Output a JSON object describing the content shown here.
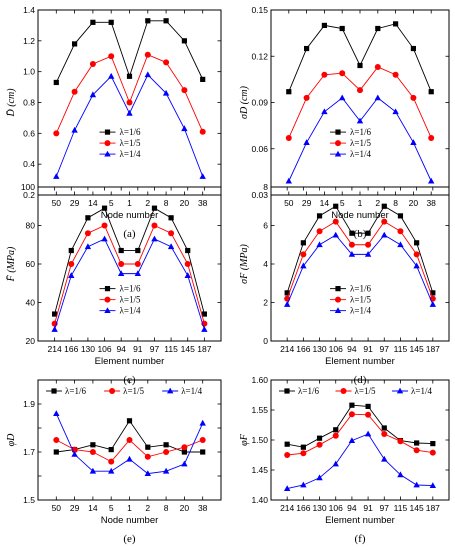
{
  "legend_labels": [
    "λ=1/6",
    "λ=1/5",
    "λ=1/4"
  ],
  "colors": [
    "#000000",
    "#ff0000",
    "#0000ff"
  ],
  "chart_data": [
    {
      "type": "line",
      "caption": "(a)",
      "ylabel": "D̄ (cm)",
      "xlabel": "Node number",
      "categories": [
        "50",
        "29",
        "14",
        "5",
        "1",
        "2",
        "8",
        "20",
        "38"
      ],
      "ylim": [
        0.2,
        1.4
      ],
      "yticks": [
        "0.2",
        "0.4",
        "0.6",
        "0.8",
        "1.0",
        "1.2",
        "1.4"
      ],
      "legend_position": "bottom-center",
      "series": [
        {
          "name": "λ=1/6",
          "values": [
            0.93,
            1.18,
            1.32,
            1.32,
            0.97,
            1.33,
            1.33,
            1.2,
            0.95
          ]
        },
        {
          "name": "λ=1/5",
          "values": [
            0.6,
            0.87,
            1.05,
            1.1,
            0.8,
            1.11,
            1.06,
            0.88,
            0.61
          ]
        },
        {
          "name": "λ=1/4",
          "values": [
            0.32,
            0.62,
            0.85,
            0.97,
            0.73,
            0.98,
            0.86,
            0.63,
            0.32
          ]
        }
      ]
    },
    {
      "type": "line",
      "caption": "(b)",
      "ylabel": "σD (cm)",
      "xlabel": "Node number",
      "categories": [
        "50",
        "29",
        "14",
        "5",
        "1",
        "2",
        "8",
        "20",
        "38"
      ],
      "ylim": [
        0.03,
        0.15
      ],
      "yticks": [
        "0.03",
        "0.06",
        "0.09",
        "0.12",
        "0.15"
      ],
      "legend_position": "bottom-center",
      "series": [
        {
          "name": "λ=1/6",
          "values": [
            0.097,
            0.125,
            0.14,
            0.138,
            0.114,
            0.138,
            0.141,
            0.125,
            0.097
          ]
        },
        {
          "name": "λ=1/5",
          "values": [
            0.067,
            0.093,
            0.108,
            0.109,
            0.098,
            0.113,
            0.108,
            0.093,
            0.067
          ]
        },
        {
          "name": "λ=1/4",
          "values": [
            0.039,
            0.064,
            0.084,
            0.093,
            0.078,
            0.093,
            0.084,
            0.064,
            0.039
          ]
        }
      ]
    },
    {
      "type": "line",
      "caption": "(c)",
      "ylabel": "F̄ (MPa)",
      "xlabel": "Element number",
      "categories": [
        "214",
        "166",
        "130",
        "106",
        "94",
        "91",
        "97",
        "115",
        "145",
        "187"
      ],
      "ylim": [
        20,
        100
      ],
      "yticks": [
        "20",
        "40",
        "60",
        "80",
        "100"
      ],
      "legend_position": "bottom-center",
      "series": [
        {
          "name": "λ=1/6",
          "values": [
            34,
            67,
            84,
            89,
            67,
            67,
            89,
            84,
            67,
            34
          ]
        },
        {
          "name": "λ=1/5",
          "values": [
            29,
            60,
            76,
            80,
            60,
            60,
            80,
            76,
            60,
            29
          ]
        },
        {
          "name": "λ=1/4",
          "values": [
            26,
            54,
            69,
            73,
            55,
            55,
            73,
            69,
            54,
            26
          ]
        }
      ]
    },
    {
      "type": "line",
      "caption": "(d)",
      "ylabel": "σF (MPa)",
      "xlabel": "Element number",
      "categories": [
        "214",
        "166",
        "130",
        "106",
        "94",
        "91",
        "97",
        "115",
        "145",
        "187"
      ],
      "ylim": [
        0,
        8
      ],
      "yticks": [
        "0",
        "2",
        "4",
        "6",
        "8"
      ],
      "legend_position": "bottom-center",
      "series": [
        {
          "name": "λ=1/6",
          "values": [
            2.5,
            5.1,
            6.5,
            7.0,
            5.6,
            5.6,
            7.0,
            6.5,
            5.1,
            2.5
          ]
        },
        {
          "name": "λ=1/5",
          "values": [
            2.2,
            4.5,
            5.7,
            6.2,
            5.0,
            5.0,
            6.2,
            5.7,
            4.5,
            2.2
          ]
        },
        {
          "name": "λ=1/4",
          "values": [
            1.9,
            3.9,
            5.0,
            5.5,
            4.5,
            4.5,
            5.5,
            5.0,
            3.9,
            1.9
          ]
        }
      ]
    },
    {
      "type": "line",
      "caption": "(e)",
      "ylabel": "φD",
      "xlabel": "Node number",
      "categories": [
        "50",
        "29",
        "14",
        "5",
        "1",
        "2",
        "8",
        "20",
        "38"
      ],
      "ylim": [
        1.5,
        2.0
      ],
      "yticks": [
        "1.5",
        "",
        "1.7",
        "",
        "1.9",
        ""
      ],
      "legend_position": "top",
      "series": [
        {
          "name": "λ=1/6",
          "values": [
            1.7,
            1.71,
            1.73,
            1.71,
            1.83,
            1.72,
            1.73,
            1.7,
            1.7
          ]
        },
        {
          "name": "λ=1/5",
          "values": [
            1.75,
            1.71,
            1.7,
            1.66,
            1.75,
            1.68,
            1.7,
            1.72,
            1.75
          ]
        },
        {
          "name": "λ=1/4",
          "values": [
            1.86,
            1.69,
            1.62,
            1.62,
            1.67,
            1.61,
            1.62,
            1.65,
            1.82
          ]
        }
      ]
    },
    {
      "type": "line",
      "caption": "(f)",
      "ylabel": "φF",
      "xlabel": "Element number",
      "categories": [
        "214",
        "166",
        "130",
        "106",
        "94",
        "91",
        "97",
        "115",
        "145",
        "187"
      ],
      "ylim": [
        1.4,
        1.6
      ],
      "yticks": [
        "1.40",
        "1.45",
        "1.50",
        "1.55",
        "1.60"
      ],
      "legend_position": "top",
      "series": [
        {
          "name": "λ=1/6",
          "values": [
            1.493,
            1.488,
            1.503,
            1.517,
            1.558,
            1.556,
            1.52,
            1.499,
            1.495,
            1.494
          ]
        },
        {
          "name": "λ=1/5",
          "values": [
            1.475,
            1.478,
            1.492,
            1.507,
            1.543,
            1.542,
            1.51,
            1.498,
            1.483,
            1.479
          ]
        },
        {
          "name": "λ=1/4",
          "values": [
            1.419,
            1.425,
            1.437,
            1.46,
            1.499,
            1.51,
            1.468,
            1.442,
            1.425,
            1.424
          ]
        }
      ]
    }
  ]
}
